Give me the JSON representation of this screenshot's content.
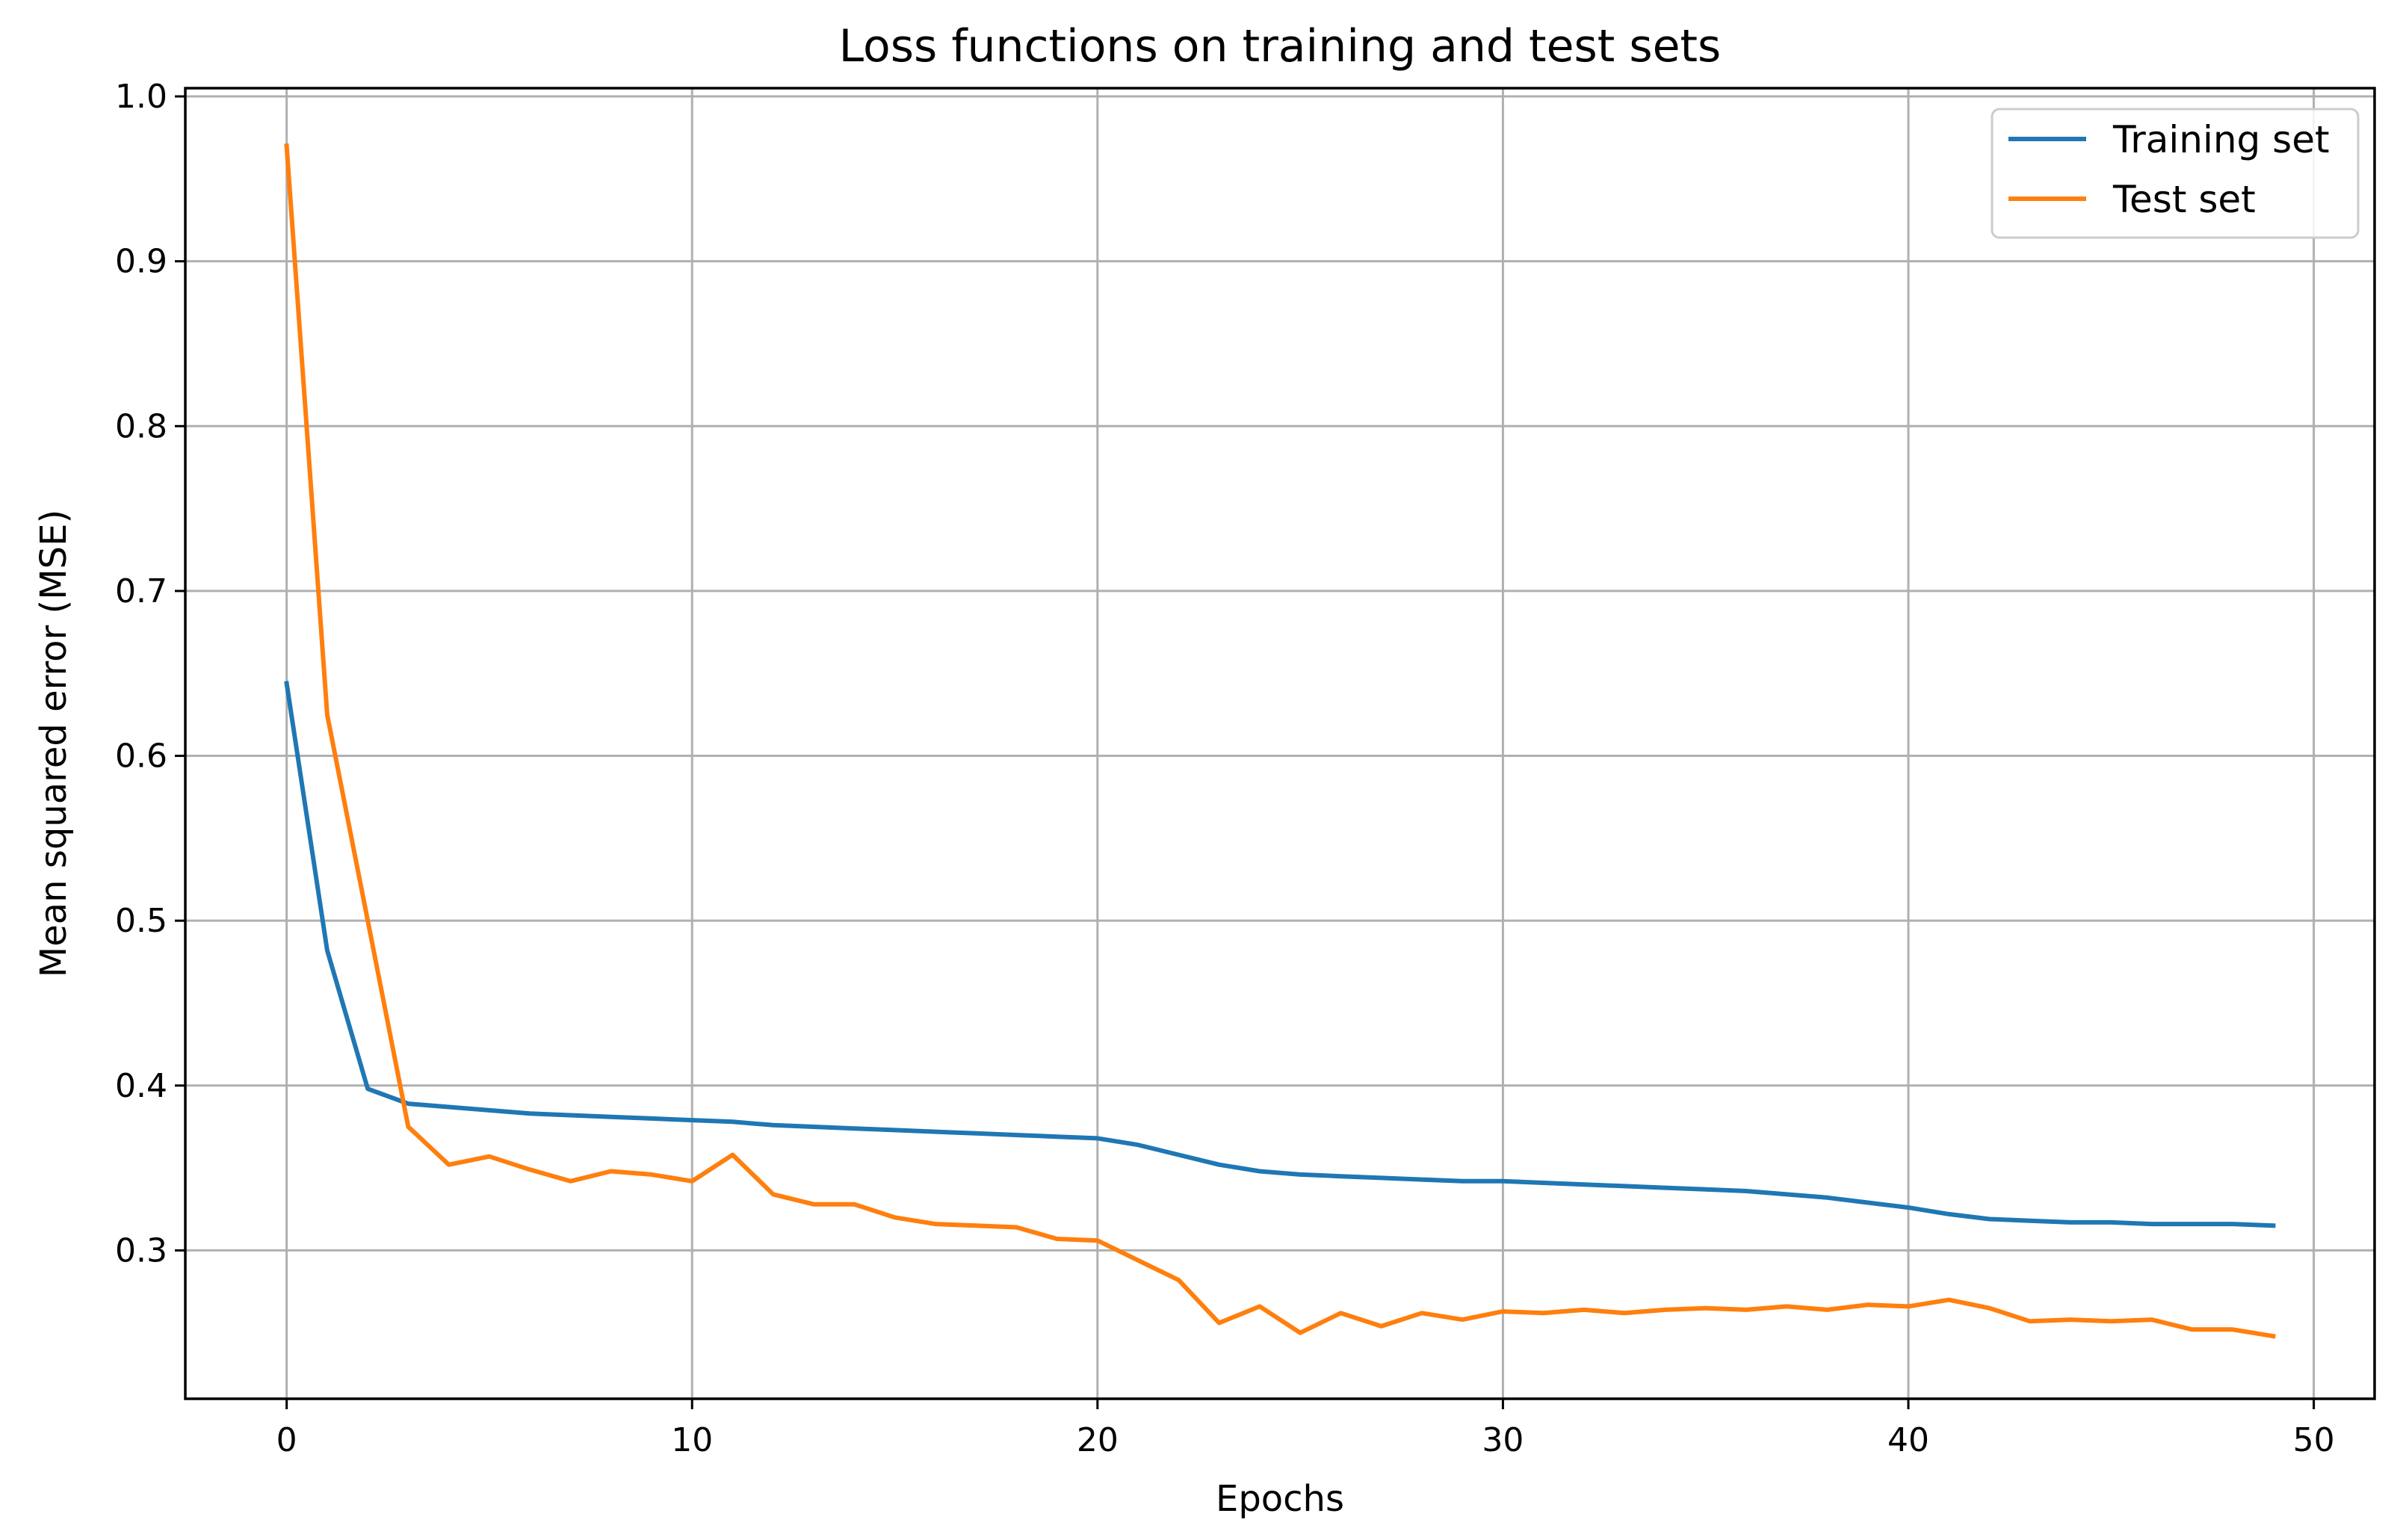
{
  "chart_data": {
    "type": "line",
    "title": "Loss functions on training and test sets",
    "xlabel": "Epochs",
    "ylabel": "Mean squared error (MSE)",
    "xlim": [
      -2.5,
      51.5
    ],
    "ylim": [
      0.21,
      1.005
    ],
    "xticks": [
      0,
      10,
      20,
      30,
      40,
      50
    ],
    "yticks": [
      0.3,
      0.4,
      0.5,
      0.6,
      0.7,
      0.8,
      0.9,
      1.0
    ],
    "grid": true,
    "legend_position": "top-right",
    "x": [
      0,
      1,
      2,
      3,
      4,
      5,
      6,
      7,
      8,
      9,
      10,
      11,
      12,
      13,
      14,
      15,
      16,
      17,
      18,
      19,
      20,
      21,
      22,
      23,
      24,
      25,
      26,
      27,
      28,
      29,
      30,
      31,
      32,
      33,
      34,
      35,
      36,
      37,
      38,
      39,
      40,
      41,
      42,
      43,
      44,
      45,
      46,
      47,
      48,
      49
    ],
    "series": [
      {
        "name": "Training set",
        "color": "#1f77b4",
        "values": [
          0.644,
          0.482,
          0.398,
          0.389,
          0.387,
          0.385,
          0.383,
          0.382,
          0.381,
          0.38,
          0.379,
          0.378,
          0.376,
          0.375,
          0.374,
          0.373,
          0.372,
          0.371,
          0.37,
          0.369,
          0.368,
          0.364,
          0.358,
          0.352,
          0.348,
          0.346,
          0.345,
          0.344,
          0.343,
          0.342,
          0.342,
          0.341,
          0.34,
          0.339,
          0.338,
          0.337,
          0.336,
          0.334,
          0.332,
          0.329,
          0.326,
          0.322,
          0.319,
          0.318,
          0.317,
          0.317,
          0.316,
          0.316,
          0.316,
          0.315
        ]
      },
      {
        "name": "Test set",
        "color": "#ff7f0e",
        "values": [
          0.97,
          0.625,
          0.5,
          0.375,
          0.352,
          0.357,
          0.349,
          0.342,
          0.348,
          0.346,
          0.342,
          0.358,
          0.334,
          0.328,
          0.328,
          0.32,
          0.316,
          0.315,
          0.314,
          0.307,
          0.306,
          0.294,
          0.282,
          0.256,
          0.266,
          0.25,
          0.262,
          0.254,
          0.262,
          0.258,
          0.263,
          0.262,
          0.264,
          0.262,
          0.264,
          0.265,
          0.264,
          0.266,
          0.264,
          0.267,
          0.266,
          0.27,
          0.265,
          0.257,
          0.258,
          0.257,
          0.258,
          0.252,
          0.252,
          0.248
        ]
      }
    ]
  }
}
